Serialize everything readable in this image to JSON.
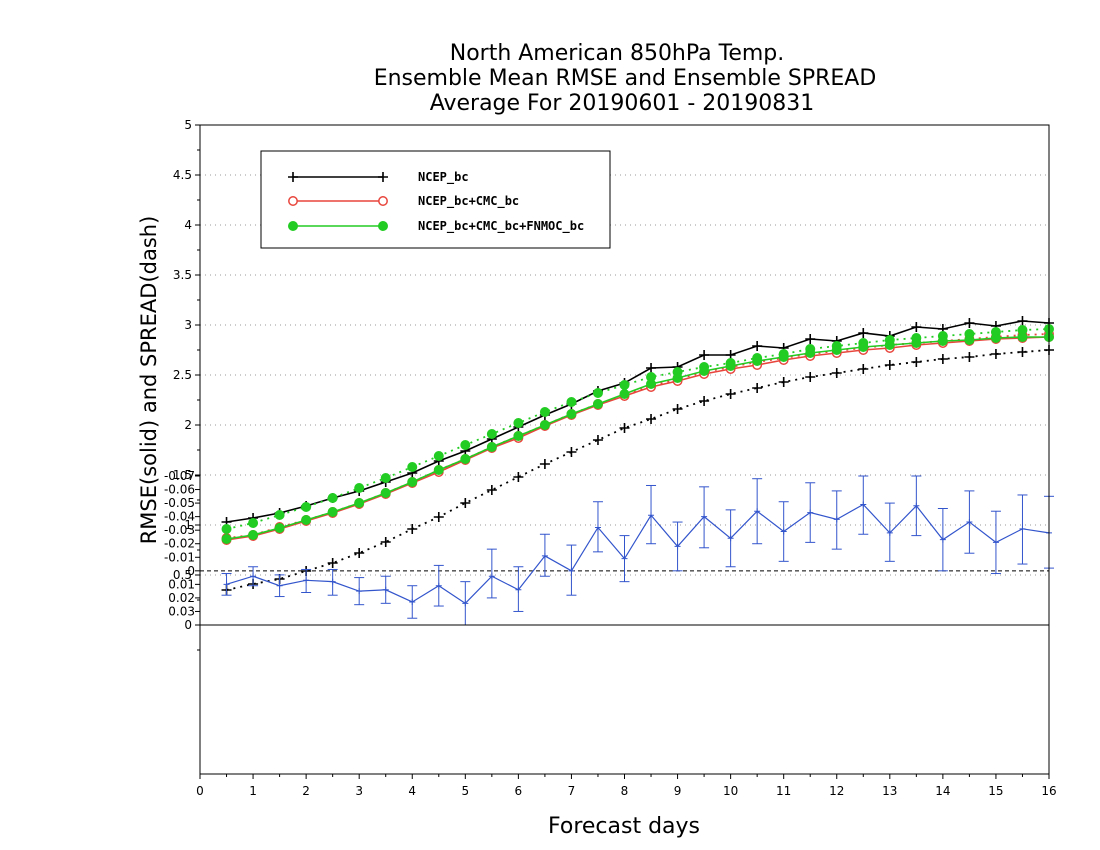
{
  "chart_data": {
    "type": "line",
    "title": [
      "North American 850hPa Temp.",
      "Ensemble Mean RMSE and Ensemble SPREAD",
      "Average For 20190601 - 20190831"
    ],
    "xlabel": "Forecast days",
    "ylabel": "RMSE(solid) and SPREAD(dash)",
    "xlim": [
      0,
      16
    ],
    "ylim": [
      0,
      5
    ],
    "x_ticks": [
      "0",
      "1",
      "2",
      "3",
      "4",
      "5",
      "6",
      "7",
      "8",
      "9",
      "10",
      "11",
      "12",
      "13",
      "14",
      "15",
      "16"
    ],
    "y_ticks": [
      "0",
      "0.5",
      "1",
      "1.5",
      "2",
      "2.5",
      "3",
      "3.5",
      "4",
      "4.5",
      "5"
    ],
    "grid": "dotted horizontal",
    "legend_position": "top-left",
    "x": [
      0.5,
      1,
      1.5,
      2,
      2.5,
      3,
      3.5,
      4,
      4.5,
      5,
      5.5,
      6,
      6.5,
      7,
      7.5,
      8,
      8.5,
      9,
      9.5,
      10,
      10.5,
      11,
      11.5,
      12,
      12.5,
      13,
      13.5,
      14,
      14.5,
      15,
      15.5,
      16
    ],
    "series": [
      {
        "name": "NCEP_bc",
        "color": "#000000",
        "marker": "plus",
        "rmse": [
          1.03,
          1.07,
          1.12,
          1.19,
          1.27,
          1.34,
          1.43,
          1.52,
          1.64,
          1.74,
          1.86,
          1.98,
          2.1,
          2.21,
          2.34,
          2.42,
          2.57,
          2.58,
          2.7,
          2.7,
          2.79,
          2.77,
          2.86,
          2.84,
          2.92,
          2.89,
          2.98,
          2.96,
          3.02,
          2.99,
          3.04,
          3.02
        ],
        "spread": [
          0.35,
          0.41,
          0.46,
          0.54,
          0.62,
          0.72,
          0.83,
          0.96,
          1.08,
          1.22,
          1.35,
          1.48,
          1.61,
          1.73,
          1.85,
          1.97,
          2.06,
          2.16,
          2.24,
          2.31,
          2.37,
          2.43,
          2.48,
          2.52,
          2.56,
          2.6,
          2.63,
          2.66,
          2.68,
          2.71,
          2.73,
          2.75
        ]
      },
      {
        "name": "NCEP_bc+CMC_bc",
        "color": "#e8453c",
        "marker": "open-circle",
        "rmse": [
          0.85,
          0.89,
          0.96,
          1.04,
          1.12,
          1.21,
          1.31,
          1.42,
          1.53,
          1.65,
          1.77,
          1.87,
          1.99,
          2.1,
          2.2,
          2.29,
          2.38,
          2.44,
          2.51,
          2.56,
          2.6,
          2.65,
          2.69,
          2.72,
          2.75,
          2.77,
          2.8,
          2.82,
          2.84,
          2.86,
          2.87,
          2.88
        ],
        "spread": [
          0.87,
          0.9,
          0.98,
          1.05,
          1.13,
          1.22,
          1.32,
          1.43,
          1.55,
          1.66,
          1.78,
          1.89,
          2.0,
          2.11,
          2.21,
          2.3,
          2.39,
          2.46,
          2.53,
          2.58,
          2.63,
          2.67,
          2.71,
          2.74,
          2.77,
          2.8,
          2.82,
          2.84,
          2.86,
          2.88,
          2.9,
          2.91
        ]
      },
      {
        "name": "NCEP_bc+CMC_bc+FNMOC_bc",
        "color": "#22cc22",
        "marker": "filled-circle",
        "rmse": [
          0.86,
          0.9,
          0.97,
          1.05,
          1.13,
          1.22,
          1.32,
          1.43,
          1.55,
          1.66,
          1.78,
          1.89,
          2.0,
          2.11,
          2.21,
          2.31,
          2.41,
          2.47,
          2.54,
          2.59,
          2.64,
          2.68,
          2.72,
          2.75,
          2.78,
          2.8,
          2.82,
          2.84,
          2.85,
          2.87,
          2.88,
          2.88
        ],
        "spread": [
          0.96,
          1.02,
          1.1,
          1.18,
          1.27,
          1.37,
          1.47,
          1.58,
          1.69,
          1.8,
          1.91,
          2.02,
          2.13,
          2.23,
          2.32,
          2.4,
          2.48,
          2.53,
          2.58,
          2.62,
          2.67,
          2.71,
          2.76,
          2.79,
          2.82,
          2.85,
          2.87,
          2.89,
          2.91,
          2.93,
          2.95,
          2.96
        ]
      }
    ],
    "difference_panel": {
      "color": "#3355cc",
      "ylim": [
        -0.07,
        0.04
      ],
      "y_ticks": [
        "0.03",
        "0.02",
        "0.01",
        "0",
        "-0.01",
        "-0.02",
        "-0.03",
        "-0.04",
        "-0.05",
        "-0.06",
        "-0.07"
      ],
      "x": [
        0.5,
        1,
        1.5,
        2,
        2.5,
        3,
        3.5,
        4,
        4.5,
        5,
        5.5,
        6,
        6.5,
        7,
        7.5,
        8,
        8.5,
        9,
        9.5,
        10,
        10.5,
        11,
        11.5,
        12,
        12.5,
        13,
        13.5,
        14,
        14.5,
        15,
        15.5,
        16
      ],
      "values": [
        0.01,
        0.004,
        0.011,
        0.007,
        0.008,
        0.015,
        0.014,
        0.023,
        0.011,
        0.024,
        0.004,
        0.014,
        -0.011,
        0.0,
        -0.032,
        -0.009,
        -0.041,
        -0.018,
        -0.04,
        -0.024,
        -0.044,
        -0.029,
        -0.043,
        -0.038,
        -0.049,
        -0.028,
        -0.048,
        -0.023,
        -0.036,
        -0.021,
        -0.031,
        -0.028
      ],
      "err_low": [
        0.002,
        -0.003,
        0.003,
        -0.001,
        -0.001,
        0.005,
        0.004,
        0.011,
        -0.004,
        0.008,
        -0.016,
        -0.003,
        -0.027,
        -0.019,
        -0.051,
        -0.026,
        -0.063,
        -0.036,
        -0.062,
        -0.045,
        -0.068,
        -0.051,
        -0.065,
        -0.059,
        -0.07,
        -0.05,
        -0.07,
        -0.046,
        -0.059,
        -0.044,
        -0.056,
        -0.055
      ],
      "err_high": [
        0.018,
        0.011,
        0.019,
        0.016,
        0.018,
        0.025,
        0.024,
        0.035,
        0.026,
        0.04,
        0.02,
        0.03,
        0.004,
        0.018,
        -0.014,
        0.008,
        -0.02,
        0.0,
        -0.017,
        -0.003,
        -0.02,
        -0.007,
        -0.021,
        -0.016,
        -0.027,
        -0.007,
        -0.026,
        0.0,
        -0.013,
        0.002,
        -0.005,
        -0.002
      ]
    }
  }
}
